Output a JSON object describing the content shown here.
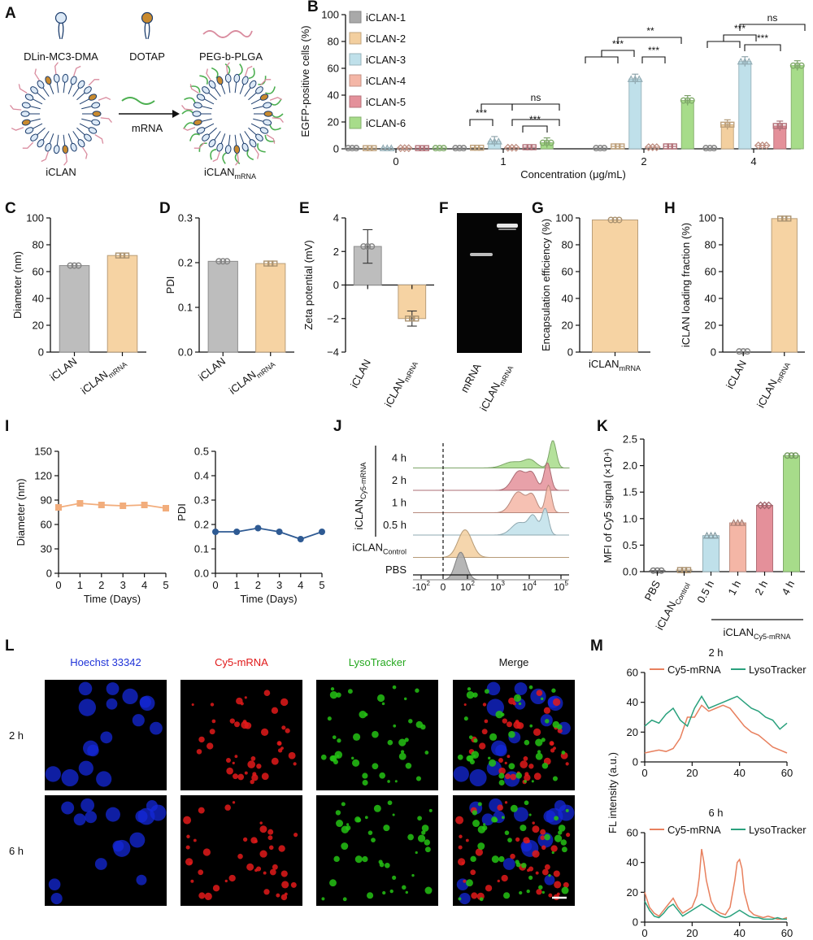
{
  "panel_letters": [
    "A",
    "B",
    "C",
    "D",
    "E",
    "F",
    "G",
    "H",
    "I",
    "J",
    "K",
    "L",
    "M"
  ],
  "colors": {
    "iclan1": "#a9a9a9",
    "iclan2": "#f3cf9f",
    "iclan3": "#bfe0ea",
    "iclan4": "#f4b6a6",
    "iclan5": "#e4909a",
    "iclan6": "#a7dc8a",
    "iclan_gray": "#bdbdbd",
    "iclan_mrna": "#f6d3a3",
    "line_orange": "#f2ad7c",
    "line_blue": "#2e5a93",
    "cy5": "#e8805e",
    "lyso": "#2aa17d",
    "hoechst_label": "#1f33d8",
    "cy5_label": "#e01818",
    "lyso_label": "#25a81f"
  },
  "panel_a": {
    "labels": [
      "DLin-MC3-DMA",
      "DOTAP",
      "PEG-b-PLGA",
      "mRNA",
      "iCLAN"
    ],
    "iclan_mrna": {
      "base": "iCLAN",
      "sub": "mRNA"
    },
    "icons": [
      "lipid-icon",
      "lipid-icon",
      "polymer-chain-icon",
      "arrow-right-icon"
    ]
  },
  "chart_data": [
    {
      "id": "B",
      "type": "bar",
      "ylabel": "EGFP-positive cells (%)",
      "xlabel": "Concentration (μg/mL)",
      "categories": [
        "0",
        "1",
        "2",
        "4"
      ],
      "ylim": [
        0,
        100
      ],
      "yticks": [
        "0",
        "20",
        "40",
        "60",
        "80",
        "100"
      ],
      "series": [
        {
          "name": "iCLAN-1",
          "values": [
            0.5,
            0.5,
            0.5,
            0.5
          ]
        },
        {
          "name": "iCLAN-2",
          "values": [
            0.5,
            0.8,
            1.8,
            18
          ]
        },
        {
          "name": "iCLAN-3",
          "values": [
            0.5,
            5.5,
            52,
            65
          ]
        },
        {
          "name": "iCLAN-4",
          "values": [
            0.5,
            0.8,
            1.2,
            2.5
          ]
        },
        {
          "name": "iCLAN-5",
          "values": [
            0.5,
            1.2,
            1.8,
            17
          ]
        },
        {
          "name": "iCLAN-6",
          "values": [
            0.5,
            4.5,
            36,
            62
          ]
        }
      ],
      "annotations": [
        "***",
        "***",
        "ns",
        "***",
        "***",
        "**",
        "***",
        "***",
        "ns"
      ]
    },
    {
      "id": "C",
      "type": "bar",
      "ylabel": "Diameter (nm)",
      "categories": [
        {
          "base": "iCLAN",
          "sub": ""
        },
        {
          "base": "iCLAN",
          "sub": "mRNA"
        }
      ],
      "values": [
        64.5,
        72
      ],
      "ylim": [
        0,
        100
      ],
      "yticks": [
        "0",
        "20",
        "40",
        "60",
        "80",
        "100"
      ]
    },
    {
      "id": "D",
      "type": "bar",
      "ylabel": "PDI",
      "categories": [
        {
          "base": "iCLAN",
          "sub": ""
        },
        {
          "base": "iCLAN",
          "sub": "mRNA"
        }
      ],
      "values": [
        0.203,
        0.198
      ],
      "ylim": [
        0,
        0.3
      ],
      "yticks": [
        "0.0",
        "0.1",
        "0.2",
        "0.3"
      ]
    },
    {
      "id": "E",
      "type": "bar",
      "ylabel": "Zeta potential (mV)",
      "categories": [
        {
          "base": "iCLAN",
          "sub": ""
        },
        {
          "base": "iCLAN",
          "sub": "mRNA"
        }
      ],
      "values": [
        2.3,
        -2.0
      ],
      "ylim": [
        -4,
        4
      ],
      "yticks": [
        "−4",
        "−2",
        "0",
        "2",
        "4"
      ]
    },
    {
      "id": "F",
      "type": "gel",
      "categories": [
        {
          "base": "mRNA",
          "sub": ""
        },
        {
          "base": "iCLAN",
          "sub": "mRNA"
        }
      ]
    },
    {
      "id": "G",
      "type": "bar",
      "ylabel": "Encapsulation efficiency (%)",
      "categories": [
        {
          "base": "iCLAN",
          "sub": "mRNA"
        }
      ],
      "values": [
        98.5
      ],
      "ylim": [
        0,
        100
      ],
      "yticks": [
        "0",
        "20",
        "40",
        "60",
        "80",
        "100"
      ]
    },
    {
      "id": "H",
      "type": "bar",
      "ylabel": "iCLAN loading fraction (%)",
      "categories": [
        {
          "base": "iCLAN",
          "sub": ""
        },
        {
          "base": "iCLAN",
          "sub": "mRNA"
        }
      ],
      "values": [
        0.5,
        99.5
      ],
      "ylim": [
        0,
        100
      ],
      "yticks": [
        "0",
        "20",
        "40",
        "60",
        "80",
        "100"
      ]
    },
    {
      "id": "I1",
      "type": "line",
      "ylabel": "Diameter (nm)",
      "xlabel": "Time (Days)",
      "x": [
        0,
        1,
        2,
        3,
        4,
        5
      ],
      "values": [
        81,
        86,
        84,
        83,
        84,
        80
      ],
      "ylim": [
        0,
        150
      ],
      "yticks": [
        "0",
        "30",
        "60",
        "90",
        "120",
        "150"
      ],
      "xticks": [
        "0",
        "1",
        "2",
        "3",
        "4",
        "5"
      ]
    },
    {
      "id": "I2",
      "type": "line",
      "ylabel": "PDI",
      "xlabel": "Time (Days)",
      "x": [
        0,
        1,
        2,
        3,
        4,
        5
      ],
      "values": [
        0.17,
        0.17,
        0.185,
        0.17,
        0.14,
        0.17
      ],
      "ylim": [
        0,
        0.5
      ],
      "yticks": [
        "0.0",
        "0.1",
        "0.2",
        "0.3",
        "0.4",
        "0.5"
      ],
      "xticks": [
        "0",
        "1",
        "2",
        "3",
        "4",
        "5"
      ]
    },
    {
      "id": "J",
      "type": "area",
      "rows": [
        {
          "label": "4 h",
          "peaks": [
            [
              2.6,
              0.22,
              0.6
            ],
            [
              3.4,
              0.28,
              0.4
            ],
            [
              4.45,
              1.0,
              0.22
            ]
          ]
        },
        {
          "label": "2 h",
          "peaks": [
            [
              2.9,
              0.7,
              0.45
            ],
            [
              3.5,
              0.55,
              0.3
            ],
            [
              4.2,
              1.0,
              0.22
            ]
          ]
        },
        {
          "label": "1 h",
          "peaks": [
            [
              2.85,
              0.75,
              0.45
            ],
            [
              3.5,
              0.6,
              0.3
            ],
            [
              4.25,
              1.0,
              0.2
            ]
          ]
        },
        {
          "label": "0.5 h",
          "peaks": [
            [
              2.9,
              0.45,
              0.5
            ],
            [
              3.55,
              0.65,
              0.3
            ],
            [
              4.1,
              0.95,
              0.22
            ]
          ]
        },
        {
          "label": {
            "base": "iCLAN",
            "sub": "Control"
          },
          "peaks": [
            [
              0.4,
              1.0,
              0.45
            ]
          ]
        },
        {
          "label": "PBS",
          "peaks": [
            [
              0.2,
              1.0,
              0.35
            ]
          ]
        }
      ],
      "group_label": {
        "base": "iCLAN",
        "sub": "Cy5-mRNA"
      },
      "xticks": [
        {
          "b": "-10",
          "e": "2"
        },
        {
          "b": "0",
          "e": ""
        },
        {
          "b": "10",
          "e": "2"
        },
        {
          "b": "10",
          "e": "3"
        },
        {
          "b": "10",
          "e": "4"
        },
        {
          "b": "10",
          "e": "5"
        }
      ]
    },
    {
      "id": "K",
      "type": "bar",
      "ylabel": "MFI of Cy5 signal (×10⁴)",
      "categories": [
        {
          "base": "PBS",
          "sub": ""
        },
        {
          "base": "iCLAN",
          "sub": "Control"
        },
        {
          "base": "0.5 h",
          "sub": ""
        },
        {
          "base": "1 h",
          "sub": ""
        },
        {
          "base": "2 h",
          "sub": ""
        },
        {
          "base": "4 h",
          "sub": ""
        }
      ],
      "values": [
        0.02,
        0.03,
        0.68,
        0.92,
        1.25,
        2.19
      ],
      "ylim": [
        0,
        2.5
      ],
      "yticks": [
        "0.0",
        "0.5",
        "1.0",
        "1.5",
        "2.0",
        "2.5"
      ],
      "group_label": {
        "base": "iCLAN",
        "sub": "Cy5-mRNA"
      }
    },
    {
      "id": "M1",
      "type": "line",
      "title": "2 h",
      "ylabel": "FL intensity (a.u.)",
      "xlabel": "",
      "ylim": [
        0,
        60
      ],
      "xlim": [
        0,
        60
      ],
      "yticks": [
        "0",
        "20",
        "40",
        "60"
      ],
      "xticks": [
        "0",
        "20",
        "40",
        "60"
      ],
      "series": [
        {
          "name": "Cy5-mRNA",
          "x": [
            0,
            3,
            6,
            9,
            12,
            15,
            18,
            21,
            24,
            27,
            30,
            33,
            36,
            39,
            42,
            45,
            48,
            51,
            54,
            57,
            60
          ],
          "values": [
            6,
            7,
            8,
            7,
            9,
            16,
            30,
            30,
            38,
            34,
            36,
            38,
            36,
            30,
            24,
            20,
            18,
            14,
            10,
            8,
            6
          ]
        },
        {
          "name": "LysoTracker",
          "x": [
            0,
            3,
            6,
            9,
            12,
            15,
            18,
            21,
            24,
            27,
            30,
            33,
            36,
            39,
            42,
            45,
            48,
            51,
            54,
            57,
            60
          ],
          "values": [
            24,
            28,
            26,
            32,
            36,
            28,
            24,
            36,
            44,
            36,
            38,
            40,
            42,
            44,
            40,
            36,
            34,
            30,
            28,
            22,
            26
          ]
        }
      ]
    },
    {
      "id": "M2",
      "type": "line",
      "title": "6 h",
      "ylabel": "FL intensity (a.u.)",
      "xlabel": "Distance (μm)",
      "ylim": [
        0,
        60
      ],
      "xlim": [
        0,
        60
      ],
      "yticks": [
        "0",
        "20",
        "40",
        "60"
      ],
      "xticks": [
        "0",
        "20",
        "40",
        "60"
      ],
      "series": [
        {
          "name": "Cy5-mRNA",
          "x": [
            0,
            2,
            4,
            6,
            8,
            10,
            12,
            14,
            16,
            18,
            20,
            22,
            23,
            24,
            25,
            26,
            28,
            30,
            32,
            34,
            36,
            38,
            39,
            40,
            41,
            42,
            44,
            46,
            48,
            50,
            52,
            54,
            56,
            58,
            60
          ],
          "values": [
            20,
            10,
            6,
            4,
            8,
            12,
            16,
            10,
            6,
            8,
            10,
            18,
            30,
            49,
            40,
            28,
            14,
            8,
            6,
            5,
            10,
            28,
            40,
            42,
            36,
            20,
            8,
            5,
            4,
            3,
            4,
            3,
            2,
            2,
            3
          ]
        },
        {
          "name": "LysoTracker",
          "x": [
            0,
            2,
            4,
            6,
            8,
            10,
            12,
            14,
            16,
            18,
            20,
            22,
            24,
            26,
            28,
            30,
            32,
            34,
            36,
            38,
            40,
            42,
            44,
            46,
            48,
            50,
            52,
            54,
            56,
            58,
            60
          ],
          "values": [
            14,
            8,
            4,
            3,
            6,
            10,
            12,
            8,
            4,
            6,
            8,
            10,
            12,
            10,
            8,
            6,
            4,
            3,
            4,
            6,
            8,
            6,
            4,
            3,
            3,
            2,
            2,
            2,
            3,
            2,
            2
          ]
        }
      ]
    }
  ],
  "panel_l": {
    "columns": [
      "Hoechst 33342",
      "Cy5-mRNA",
      "LysoTracker",
      "Merge"
    ],
    "rows": [
      "2 h",
      "6 h"
    ]
  }
}
